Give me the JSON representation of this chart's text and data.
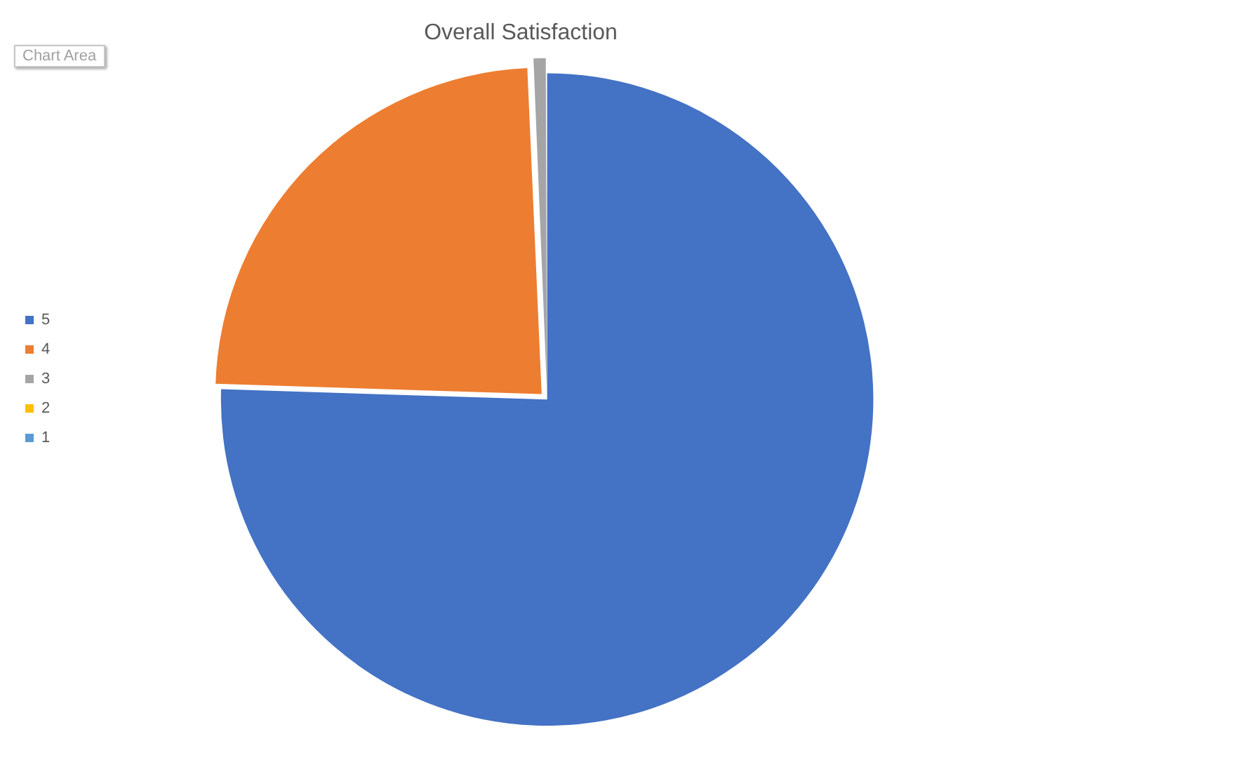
{
  "chart_data": {
    "type": "pie",
    "title": "Overall Satisfaction",
    "categories": [
      "5",
      "4",
      "3",
      "2",
      "1"
    ],
    "values": [
      75.5,
      23.8,
      0.7,
      0,
      0
    ],
    "colors": [
      "#4472c4",
      "#ed7d31",
      "#a5a5a5",
      "#ffc000",
      "#5b9bd5"
    ],
    "legend": "left",
    "annotations": [
      "Chart Area"
    ]
  }
}
